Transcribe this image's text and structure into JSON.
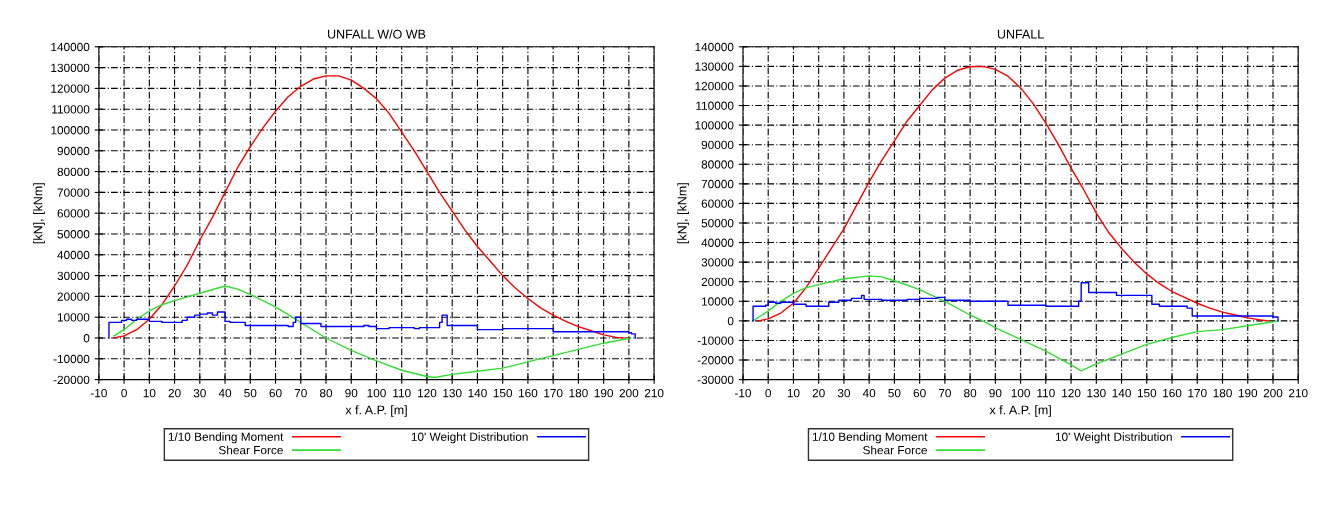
{
  "chart_data": [
    {
      "type": "line",
      "title": "UNFALL W/O WB",
      "xlabel": "x f. A.P. [m]",
      "ylabel": "[kN], [kNm]",
      "xlim": [
        -10,
        210
      ],
      "xticks": [
        -10,
        0,
        10,
        20,
        30,
        40,
        50,
        60,
        70,
        80,
        90,
        100,
        110,
        120,
        130,
        140,
        150,
        160,
        170,
        180,
        190,
        200,
        210
      ],
      "ylim": [
        -20000,
        140000
      ],
      "yticks": [
        -20000,
        -10000,
        0,
        10000,
        20000,
        30000,
        40000,
        50000,
        60000,
        70000,
        80000,
        90000,
        100000,
        110000,
        120000,
        130000,
        140000
      ],
      "grid": true,
      "legend": "bottom",
      "marker": "none",
      "line_style": "solid",
      "series": [
        {
          "name": "1/10 Bending Moment",
          "color": "#ff0000",
          "x": [
            -4,
            0,
            5,
            10,
            15,
            20,
            25,
            30,
            35,
            40,
            45,
            50,
            55,
            60,
            65,
            70,
            75,
            80,
            85,
            90,
            95,
            100,
            105,
            110,
            115,
            120,
            125,
            130,
            135,
            140,
            145,
            150,
            155,
            160,
            165,
            170,
            175,
            180,
            185,
            190,
            195,
            198
          ],
          "values": [
            0,
            1000,
            4000,
            9000,
            16000,
            25000,
            35000,
            47000,
            58000,
            70000,
            82000,
            92000,
            101000,
            109000,
            116000,
            121000,
            124500,
            126000,
            126000,
            124000,
            120000,
            115000,
            108000,
            99000,
            90000,
            80000,
            70000,
            61000,
            52000,
            44000,
            37000,
            30000,
            24000,
            19000,
            14500,
            11000,
            8000,
            5500,
            3500,
            1500,
            300,
            0
          ]
        },
        {
          "name": "Shear Force",
          "color": "#33dd33",
          "x": [
            -4,
            0,
            5,
            10,
            15,
            20,
            30,
            40,
            45,
            50,
            60,
            70,
            80,
            90,
            100,
            110,
            120,
            123,
            130,
            140,
            150,
            160,
            170,
            180,
            190,
            200
          ],
          "values": [
            1000,
            4000,
            9000,
            13000,
            16000,
            18000,
            21500,
            25000,
            23500,
            21000,
            15000,
            7500,
            0,
            -6000,
            -11000,
            -15500,
            -18500,
            -19000,
            -17500,
            -16000,
            -14500,
            -11500,
            -8500,
            -5500,
            -2500,
            -200
          ]
        },
        {
          "name": "10' Weight Distribution",
          "type": "step",
          "color": "#0000ff",
          "x": [
            -6,
            -6,
            -1,
            1,
            3,
            5,
            10,
            15,
            23,
            25,
            28,
            30,
            33,
            35,
            37,
            40,
            42,
            48,
            65,
            67,
            68,
            70,
            78,
            95,
            97,
            100,
            105,
            115,
            117,
            125,
            126,
            128,
            140,
            150,
            170,
            200,
            201,
            202.5
          ],
          "values": [
            0,
            7500,
            8500,
            9000,
            8500,
            9000,
            8000,
            7500,
            8500,
            10000,
            11000,
            11500,
            12000,
            11000,
            12500,
            8000,
            7500,
            6000,
            5500,
            7500,
            10000,
            7000,
            5500,
            6000,
            5500,
            4500,
            5000,
            4500,
            5000,
            7500,
            11000,
            6000,
            4000,
            4500,
            3000,
            2500,
            2000,
            0
          ]
        }
      ]
    },
    {
      "type": "line",
      "title": "UNFALL",
      "xlabel": "x f. A.P. [m]",
      "ylabel": "[kN], [kNm]",
      "xlim": [
        -10,
        210
      ],
      "xticks": [
        -10,
        0,
        10,
        20,
        30,
        40,
        50,
        60,
        70,
        80,
        90,
        100,
        110,
        120,
        130,
        140,
        150,
        160,
        170,
        180,
        190,
        200,
        210
      ],
      "ylim": [
        -30000,
        140000
      ],
      "yticks": [
        -30000,
        -20000,
        -10000,
        0,
        10000,
        20000,
        30000,
        40000,
        50000,
        60000,
        70000,
        80000,
        90000,
        100000,
        110000,
        120000,
        130000,
        140000
      ],
      "grid": true,
      "legend": "bottom",
      "marker": "none",
      "line_style": "solid",
      "series": [
        {
          "name": "1/10 Bending Moment",
          "color": "#ff0000",
          "x": [
            -4,
            0,
            5,
            10,
            15,
            20,
            25,
            30,
            35,
            40,
            45,
            50,
            55,
            60,
            65,
            70,
            75,
            80,
            85,
            90,
            95,
            100,
            105,
            110,
            115,
            120,
            125,
            130,
            135,
            140,
            145,
            150,
            155,
            160,
            165,
            170,
            175,
            180,
            185,
            190,
            195,
            198
          ],
          "values": [
            0,
            1000,
            4000,
            9000,
            17000,
            27000,
            37000,
            47000,
            59000,
            71000,
            82000,
            92000,
            102000,
            110000,
            118000,
            124000,
            128000,
            129800,
            130000,
            128500,
            125000,
            119000,
            111000,
            101000,
            90000,
            78000,
            67000,
            55000,
            45000,
            37000,
            30000,
            24000,
            19000,
            15000,
            12000,
            9000,
            6500,
            4500,
            3000,
            1500,
            500,
            0
          ]
        },
        {
          "name": "Shear Force",
          "color": "#33dd33",
          "x": [
            -6,
            0,
            5,
            10,
            15,
            20,
            30,
            40,
            45,
            50,
            60,
            70,
            80,
            85,
            90,
            100,
            110,
            120,
            124,
            130,
            140,
            150,
            160,
            170,
            180,
            190,
            200,
            202
          ],
          "values": [
            0,
            5000,
            10000,
            14000,
            17000,
            18500,
            21500,
            23000,
            22500,
            20500,
            16000,
            10000,
            3000,
            0,
            -3500,
            -9500,
            -15500,
            -22500,
            -25500,
            -22000,
            -17000,
            -12000,
            -8500,
            -5500,
            -4500,
            -2500,
            -500,
            0
          ]
        },
        {
          "name": "10' Weight Distribution",
          "type": "step",
          "color": "#0000ff",
          "x": [
            -6,
            -6,
            -1,
            0,
            3,
            5,
            10,
            15,
            24,
            28,
            33,
            37,
            38,
            45,
            55,
            60,
            67,
            70,
            80,
            95,
            110,
            123,
            124,
            127,
            138,
            152,
            155,
            166,
            168,
            200,
            202
          ],
          "values": [
            0,
            7500,
            8000,
            9500,
            9000,
            9500,
            8500,
            7500,
            9500,
            10500,
            11500,
            13000,
            11000,
            10500,
            11000,
            11500,
            12000,
            10500,
            10000,
            8000,
            7500,
            10000,
            19500,
            14500,
            13000,
            8500,
            7500,
            6500,
            2500,
            2000,
            0
          ]
        }
      ]
    }
  ]
}
